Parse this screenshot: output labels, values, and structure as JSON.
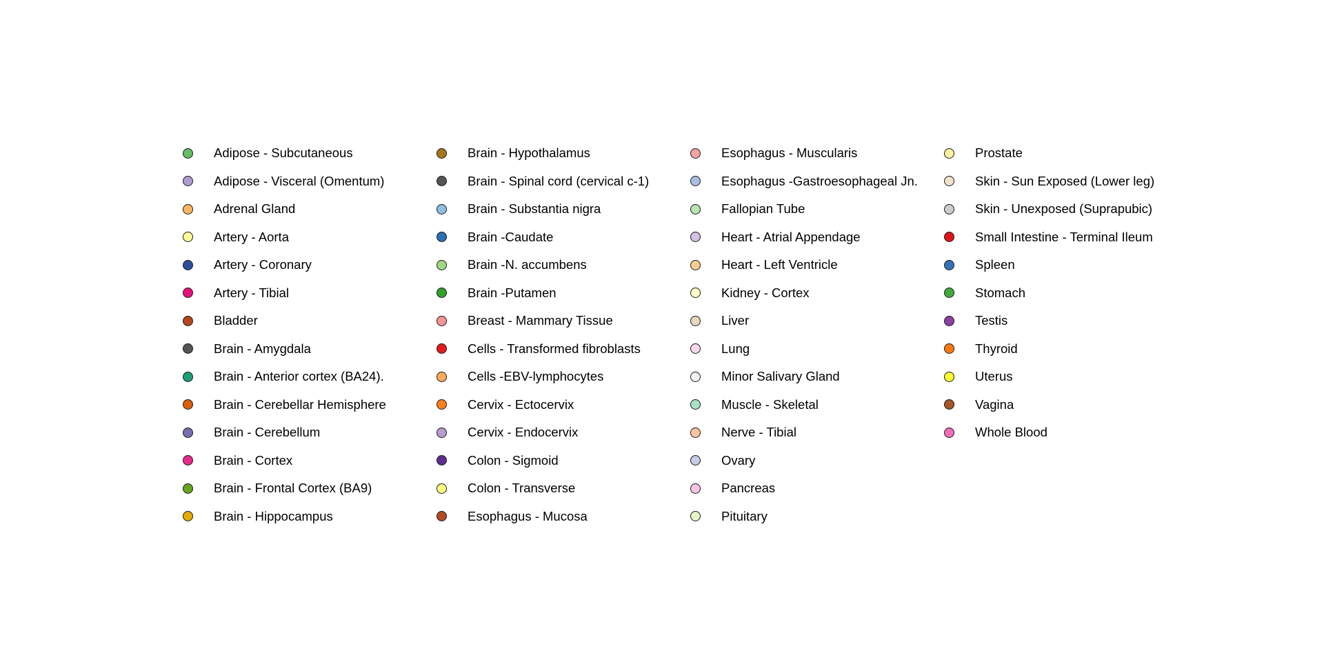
{
  "chart_data": {
    "type": "scatter",
    "legend_placement": "center",
    "legend_columns": 4,
    "legend": [
      {
        "label": "Adipose - Subcutaneous",
        "color": "#66bd63"
      },
      {
        "label": "Adipose - Visceral (Omentum)",
        "color": "#b09bd0"
      },
      {
        "label": "Adrenal Gland",
        "color": "#fdb462"
      },
      {
        "label": "Artery - Aorta",
        "color": "#ffff99"
      },
      {
        "label": "Artery - Coronary",
        "color": "#2d4e9e"
      },
      {
        "label": "Artery - Tibial",
        "color": "#e7117a"
      },
      {
        "label": "Bladder",
        "color": "#b3461c"
      },
      {
        "label": "Brain - Amygdala",
        "color": "#555555"
      },
      {
        "label": "Brain - Anterior cortex (BA24).",
        "color": "#1b9e77"
      },
      {
        "label": "Brain - Cerebellar Hemisphere",
        "color": "#d95f02"
      },
      {
        "label": "Brain - Cerebellum",
        "color": "#7570b3"
      },
      {
        "label": "Brain - Cortex",
        "color": "#e7298a"
      },
      {
        "label": "Brain - Frontal Cortex (BA9)",
        "color": "#66a61e"
      },
      {
        "label": "Brain - Hippocampus",
        "color": "#e6ab02"
      },
      {
        "label": "Brain - Hypothalamus",
        "color": "#a6761d"
      },
      {
        "label": "Brain - Spinal cord (cervical c-1)",
        "color": "#555555"
      },
      {
        "label": "Brain - Substantia nigra",
        "color": "#8fbfe0"
      },
      {
        "label": "Brain -Caudate",
        "color": "#2b6fb4"
      },
      {
        "label": "Brain -N. accumbens",
        "color": "#a1d884"
      },
      {
        "label": "Brain -Putamen",
        "color": "#33a02c"
      },
      {
        "label": "Breast - Mammary Tissue",
        "color": "#f49595"
      },
      {
        "label": "Cells - Transformed fibroblasts",
        "color": "#e31a1c"
      },
      {
        "label": "Cells -EBV-lymphocytes",
        "color": "#fdaa5b"
      },
      {
        "label": "Cervix - Ectocervix",
        "color": "#ff7f1e"
      },
      {
        "label": "Cervix - Endocervix",
        "color": "#b89ccc"
      },
      {
        "label": "Colon - Sigmoid",
        "color": "#5e2f90"
      },
      {
        "label": "Colon - Transverse",
        "color": "#ffff80"
      },
      {
        "label": "Esophagus - Mucosa",
        "color": "#b24a22"
      },
      {
        "label": "Esophagus - Muscularis",
        "color": "#f5a3a3"
      },
      {
        "label": "Esophagus -Gastroesophageal Jn.",
        "color": "#a9bfe0"
      },
      {
        "label": "Fallopian Tube",
        "color": "#b8e5b0"
      },
      {
        "label": "Heart - Atrial Appendage",
        "color": "#d5bfe3"
      },
      {
        "label": "Heart - Left Ventricle",
        "color": "#fdcd8f"
      },
      {
        "label": "Kidney - Cortex",
        "color": "#ffffcc"
      },
      {
        "label": "Liver",
        "color": "#e5d8bd"
      },
      {
        "label": "Lung",
        "color": "#fdd9ec"
      },
      {
        "label": "Minor Salivary Gland",
        "color": "#f2f2f2"
      },
      {
        "label": "Muscle - Skeletal",
        "color": "#a8e3c3"
      },
      {
        "label": "Nerve - Tibial",
        "color": "#fcc5a0"
      },
      {
        "label": "Ovary",
        "color": "#c4cbe5"
      },
      {
        "label": "Pancreas",
        "color": "#f7c4e2"
      },
      {
        "label": "Pituitary",
        "color": "#e6f5c9"
      },
      {
        "label": "Prostate",
        "color": "#fff2a0"
      },
      {
        "label": "Skin - Sun Exposed (Lower leg)",
        "color": "#f1e2cc"
      },
      {
        "label": "Skin - Unexposed (Suprapubic)",
        "color": "#cccccc"
      },
      {
        "label": "Small Intestine - Terminal Ileum",
        "color": "#e0151b"
      },
      {
        "label": "Spleen",
        "color": "#3571b8"
      },
      {
        "label": "Stomach",
        "color": "#44a83f"
      },
      {
        "label": "Testis",
        "color": "#8b3fa0"
      },
      {
        "label": "Thyroid",
        "color": "#ff7a10"
      },
      {
        "label": "Uterus",
        "color": "#ffff33"
      },
      {
        "label": "Vagina",
        "color": "#a65628"
      },
      {
        "label": "Whole Blood",
        "color": "#f06eb5"
      }
    ]
  }
}
